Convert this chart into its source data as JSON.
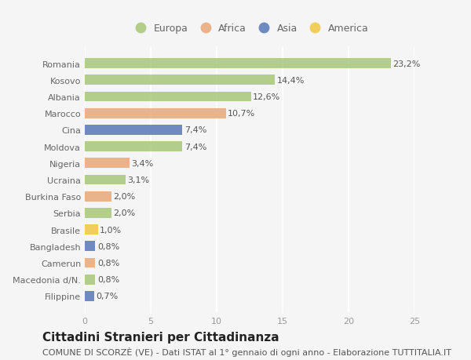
{
  "countries": [
    "Romania",
    "Kosovo",
    "Albania",
    "Marocco",
    "Cina",
    "Moldova",
    "Nigeria",
    "Ucraina",
    "Burkina Faso",
    "Serbia",
    "Brasile",
    "Bangladesh",
    "Camerun",
    "Macedonia d/N.",
    "Filippine"
  ],
  "values": [
    23.2,
    14.4,
    12.6,
    10.7,
    7.4,
    7.4,
    3.4,
    3.1,
    2.0,
    2.0,
    1.0,
    0.8,
    0.8,
    0.8,
    0.7
  ],
  "labels": [
    "23,2%",
    "14,4%",
    "12,6%",
    "10,7%",
    "7,4%",
    "7,4%",
    "3,4%",
    "3,1%",
    "2,0%",
    "2,0%",
    "1,0%",
    "0,8%",
    "0,8%",
    "0,8%",
    "0,7%"
  ],
  "continents": [
    "Europa",
    "Europa",
    "Europa",
    "Africa",
    "Asia",
    "Europa",
    "Africa",
    "Europa",
    "Africa",
    "Europa",
    "America",
    "Asia",
    "Africa",
    "Europa",
    "Asia"
  ],
  "colors": {
    "Europa": "#a8c87a",
    "Africa": "#e8a87a",
    "Asia": "#5878b8",
    "America": "#f0c840"
  },
  "xlim": [
    0,
    25
  ],
  "xticks": [
    0,
    5,
    10,
    15,
    20,
    25
  ],
  "title": "Cittadini Stranieri per Cittadinanza",
  "subtitle": "COMUNE DI SCORZÈ (VE) - Dati ISTAT al 1° gennaio di ogni anno - Elaborazione TUTTITALIA.IT",
  "background_color": "#f5f5f5",
  "plot_bg_color": "#f5f5f5",
  "grid_color": "#ffffff",
  "bar_height": 0.6,
  "title_fontsize": 11,
  "subtitle_fontsize": 8,
  "label_fontsize": 8,
  "tick_fontsize": 8,
  "legend_fontsize": 9,
  "ytick_color": "#666666",
  "xtick_color": "#999999",
  "label_color": "#555555"
}
